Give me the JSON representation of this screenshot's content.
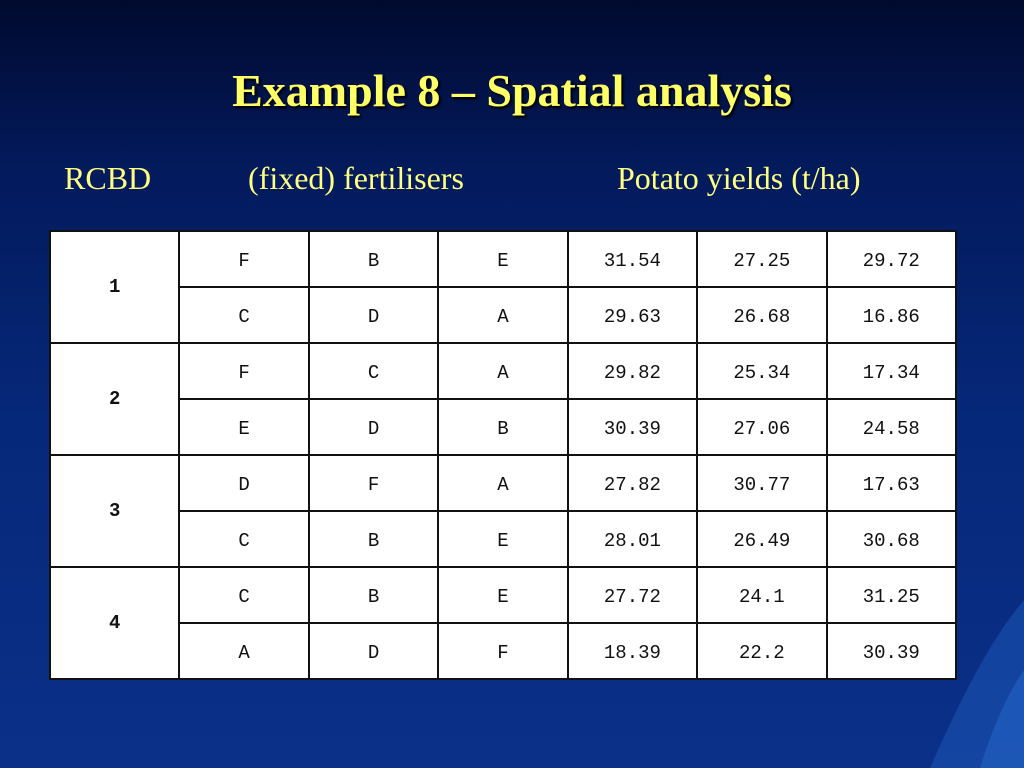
{
  "slide": {
    "title": "Example 8 – Spatial analysis",
    "subtitle": {
      "design": "RCBD",
      "treatments": "(fixed) fertilisers",
      "response": "Potato yields (t/ha)"
    }
  },
  "table": {
    "blocks": [
      {
        "label": "1",
        "rows": [
          {
            "fertilisers": [
              "F",
              "B",
              "E"
            ],
            "yields": [
              "31.54",
              "27.25",
              "29.72"
            ]
          },
          {
            "fertilisers": [
              "C",
              "D",
              "A"
            ],
            "yields": [
              "29.63",
              "26.68",
              "16.86"
            ]
          }
        ]
      },
      {
        "label": "2",
        "rows": [
          {
            "fertilisers": [
              "F",
              "C",
              "A"
            ],
            "yields": [
              "29.82",
              "25.34",
              "17.34"
            ]
          },
          {
            "fertilisers": [
              "E",
              "D",
              "B"
            ],
            "yields": [
              "30.39",
              "27.06",
              "24.58"
            ]
          }
        ]
      },
      {
        "label": "3",
        "rows": [
          {
            "fertilisers": [
              "D",
              "F",
              "A"
            ],
            "yields": [
              "27.82",
              "30.77",
              "17.63"
            ]
          },
          {
            "fertilisers": [
              "C",
              "B",
              "E"
            ],
            "yields": [
              "28.01",
              "26.49",
              "30.68"
            ]
          }
        ]
      },
      {
        "label": "4",
        "rows": [
          {
            "fertilisers": [
              "C",
              "B",
              "E"
            ],
            "yields": [
              "27.72",
              "24.1",
              "31.25"
            ]
          },
          {
            "fertilisers": [
              "A",
              "D",
              "F"
            ],
            "yields": [
              "18.39",
              "22.2",
              "30.39"
            ]
          }
        ]
      }
    ]
  },
  "colors": {
    "title": "#ffff66",
    "subtitle": "#ffff80",
    "background_top": "#000a2e",
    "background_bottom": "#0a3088",
    "table_background": "#ffffff"
  }
}
